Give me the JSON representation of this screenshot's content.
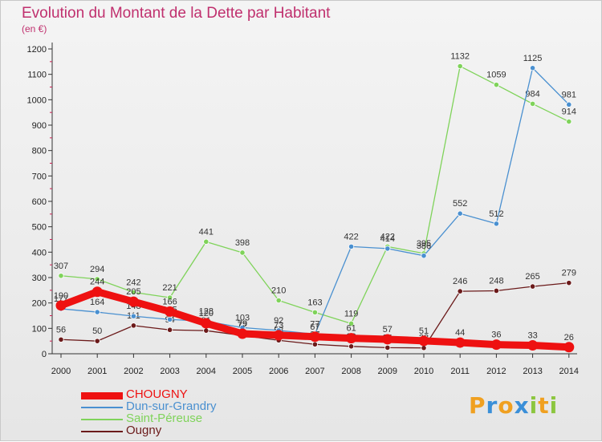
{
  "header": {
    "title": "Evolution du Montant de la Dette par Habitant",
    "unit": "(en €)"
  },
  "logo": {
    "text": "Proxiti",
    "letters": [
      {
        "ch": "P",
        "color": "#f0a020"
      },
      {
        "ch": "r",
        "color": "#3a8fd8"
      },
      {
        "ch": "o",
        "color": "#f0a020"
      },
      {
        "ch": "x",
        "color": "#3a8fd8"
      },
      {
        "ch": "i",
        "color": "#8cc63f"
      },
      {
        "ch": "t",
        "color": "#f0a020"
      },
      {
        "ch": "i",
        "color": "#8cc63f"
      }
    ]
  },
  "chart_data": {
    "type": "line",
    "title": "Evolution du Montant de la Dette par Habitant",
    "ylabel": "(en €)",
    "x": [
      "2000",
      "2001",
      "2002",
      "2003",
      "2004",
      "2005",
      "2006",
      "2007",
      "2008",
      "2009",
      "2010",
      "2011",
      "2012",
      "2013",
      "2014"
    ],
    "ylim": [
      0,
      1200
    ],
    "yticks": [
      0,
      100,
      200,
      300,
      400,
      500,
      600,
      700,
      800,
      900,
      1000,
      1100,
      1200
    ],
    "grid": false,
    "legend_position": "bottom-left",
    "series": [
      {
        "name": "Ougny",
        "color": "#6b1a1a",
        "values": [
          56,
          50,
          111,
          94,
          91,
          72,
          53,
          37,
          29,
          24,
          23,
          246,
          248,
          265,
          279
        ],
        "labels": [
          "56",
          "50",
          "111",
          "94",
          "91",
          "72",
          "53",
          "37",
          "29",
          "24",
          "23",
          "246",
          "248",
          "265",
          "279"
        ]
      },
      {
        "name": "Saint-Péreuse",
        "color": "#7fd35a",
        "values": [
          307,
          294,
          242,
          221,
          441,
          398,
          210,
          163,
          119,
          422,
          395,
          1132,
          1059,
          984,
          914
        ],
        "labels": [
          "307",
          "294",
          "242",
          "221",
          "441",
          "398",
          "210",
          "163",
          "119",
          "422",
          "395",
          "1132",
          "1059",
          "984",
          "914"
        ]
      },
      {
        "name": "Dun-sur-Grandry",
        "color": "#4a90d0",
        "values": [
          177,
          164,
          148,
          135,
          128,
          103,
          92,
          77,
          422,
          414,
          386,
          552,
          512,
          1125,
          981
        ],
        "labels": [
          "177",
          "164",
          "148",
          "135",
          "128",
          "103",
          "92",
          "77",
          "422",
          "414",
          "386",
          "552",
          "512",
          "1125",
          "981"
        ]
      },
      {
        "name": "CHOUGNY",
        "color": "#ee1111",
        "values": [
          190,
          244,
          205,
          166,
          120,
          79,
          73,
          67,
          61,
          57,
          51,
          44,
          36,
          33,
          26
        ],
        "labels": [
          "190",
          "244",
          "205",
          "166",
          "120",
          "79",
          "73",
          "67",
          "61",
          "57",
          "51",
          "44",
          "36",
          "33",
          "26"
        ]
      }
    ]
  },
  "legend_items": [
    {
      "name": "CHOUGNY",
      "color": "#ee1111"
    },
    {
      "name": "Dun-sur-Grandry",
      "color": "#4a90d0"
    },
    {
      "name": "Saint-Péreuse",
      "color": "#7fd35a"
    },
    {
      "name": "Ougny",
      "color": "#6b1a1a"
    }
  ]
}
